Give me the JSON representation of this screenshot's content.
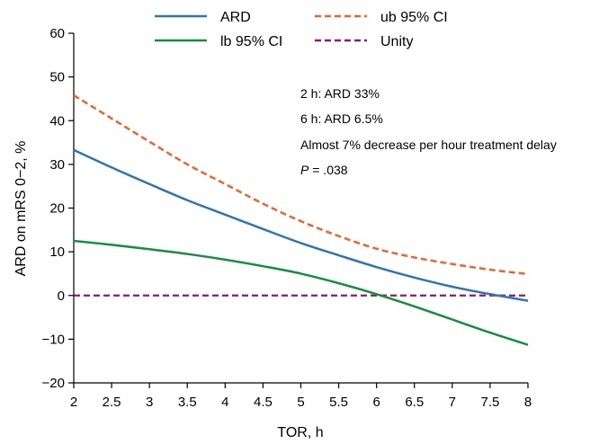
{
  "chart_data": {
    "type": "line",
    "title": "",
    "xlabel": "TOR, h",
    "ylabel": "ARD on mRS 0−2, %",
    "xlim": [
      2,
      8
    ],
    "ylim": [
      -20,
      60
    ],
    "x_ticks": [
      2,
      2.5,
      3,
      3.5,
      4,
      4.5,
      5,
      5.5,
      6,
      6.5,
      7,
      7.5,
      8
    ],
    "x_tick_labels": [
      "2",
      "2.5",
      "3",
      "3.5",
      "4",
      "4.5",
      "5",
      "5.5",
      "6",
      "6.5",
      "7",
      "7.5",
      "8"
    ],
    "y_ticks": [
      -20,
      -10,
      0,
      10,
      20,
      30,
      40,
      50,
      60
    ],
    "y_tick_labels": [
      "−20",
      "−10",
      "0",
      "10",
      "20",
      "30",
      "40",
      "50",
      "60"
    ],
    "grid": false,
    "legend_position": "top",
    "series": [
      {
        "name": "ARD",
        "color": "#2e75b6",
        "dash": "solid",
        "x": [
          2,
          2.5,
          3,
          3.5,
          4,
          4.5,
          5,
          5.5,
          6,
          6.5,
          7,
          7.5,
          8
        ],
        "values": [
          33.3,
          29.3,
          25.5,
          21.8,
          18.5,
          15.2,
          12.0,
          9.2,
          6.5,
          4.1,
          2.0,
          0.3,
          -1.2
        ]
      },
      {
        "name": "ub 95% CI",
        "color": "#f0622d",
        "dash": "dashed",
        "x": [
          2,
          2.5,
          3,
          3.5,
          4,
          4.5,
          5,
          5.5,
          6,
          6.5,
          7,
          7.5,
          8
        ],
        "values": [
          45.8,
          40.5,
          35.2,
          30.0,
          25.5,
          21.0,
          17.0,
          13.6,
          10.7,
          8.7,
          7.2,
          5.9,
          4.9
        ]
      },
      {
        "name": "lb 95% CI",
        "color": "#12903e",
        "dash": "solid",
        "x": [
          2,
          2.5,
          3,
          3.5,
          4,
          4.5,
          5,
          5.5,
          6,
          6.5,
          7,
          7.5,
          8
        ],
        "values": [
          12.5,
          11.6,
          10.6,
          9.5,
          8.2,
          6.7,
          5.0,
          2.8,
          0.3,
          -2.5,
          -5.5,
          -8.5,
          -11.3
        ]
      },
      {
        "name": "Unity",
        "color": "#8e1f5a",
        "dash": "dashed",
        "x": [
          2,
          8
        ],
        "values": [
          0,
          0
        ]
      }
    ],
    "legend": [
      {
        "label": "ARD",
        "series": 0
      },
      {
        "label": "ub 95% CI",
        "series": 1
      },
      {
        "label": "lb 95% CI",
        "series": 2
      },
      {
        "label": "Unity",
        "series": 3
      }
    ],
    "annotations": {
      "line1": "2 h: ARD 33%",
      "line2": "6 h: ARD 6.5%",
      "line3": "Almost 7% decrease per hour treatment delay",
      "p_symbol": "P",
      "p_value": " = .038"
    }
  }
}
